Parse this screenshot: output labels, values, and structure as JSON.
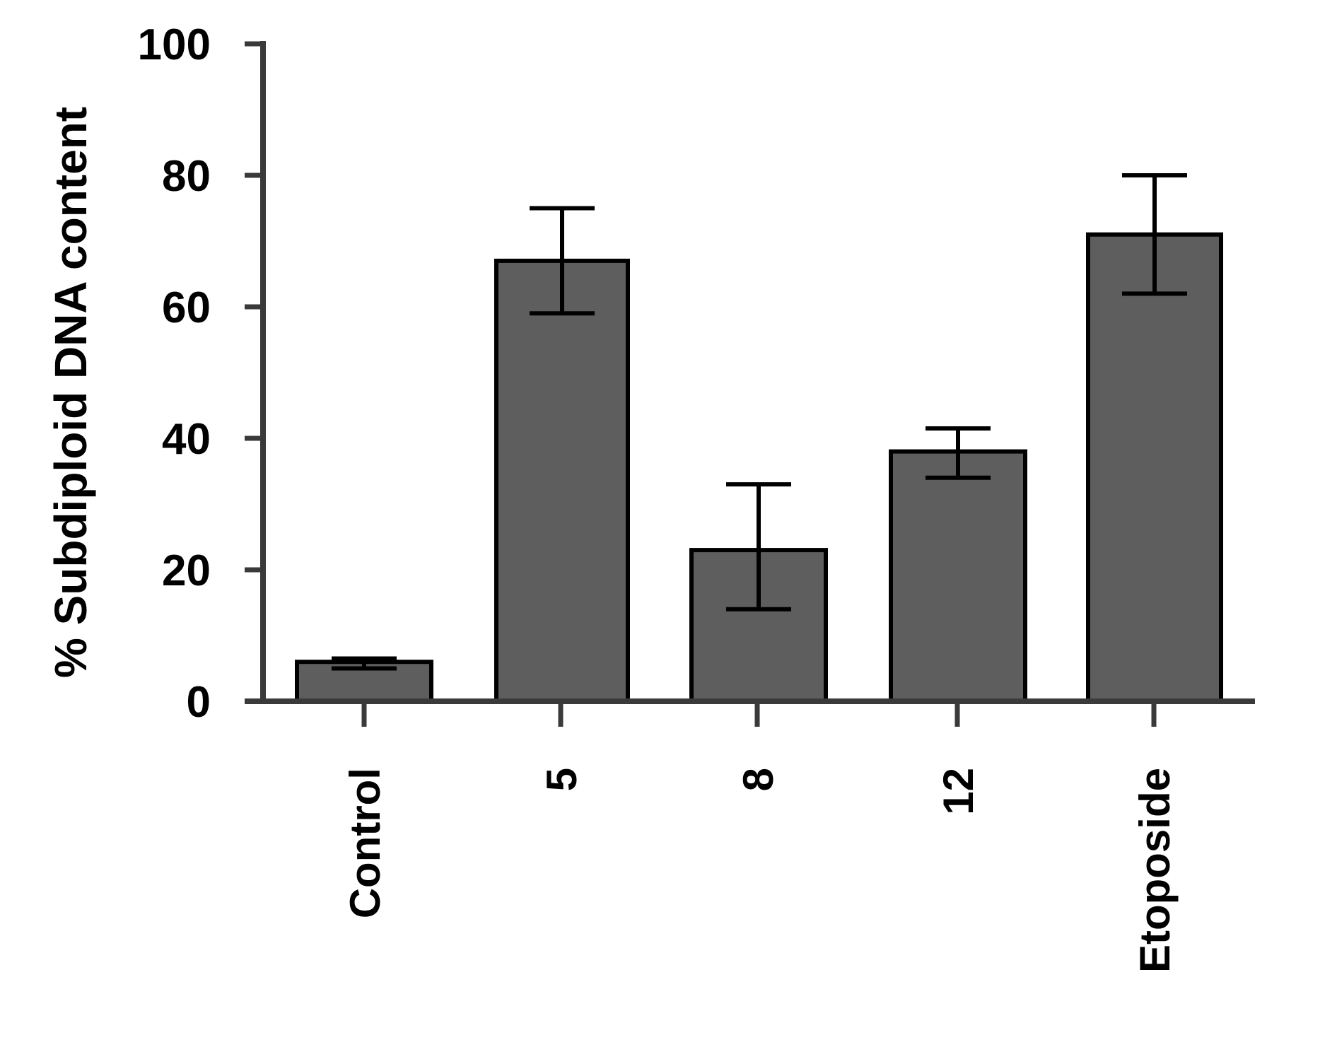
{
  "chart_data": {
    "type": "bar",
    "title": "",
    "xlabel": "",
    "ylabel": "% Subdiploid DNA content",
    "ylim": [
      0,
      100
    ],
    "yticks": [
      0,
      20,
      40,
      60,
      80,
      100
    ],
    "categories": [
      "Control",
      "5",
      "8",
      "12",
      "Etoposide"
    ],
    "values": [
      6,
      67,
      23,
      38,
      71
    ],
    "error_low": [
      5,
      59,
      14,
      34,
      62
    ],
    "error_high": [
      6.5,
      75,
      33,
      41.5,
      80
    ],
    "bar_color": "#5e5e5e",
    "grid": false,
    "legend": "none"
  }
}
